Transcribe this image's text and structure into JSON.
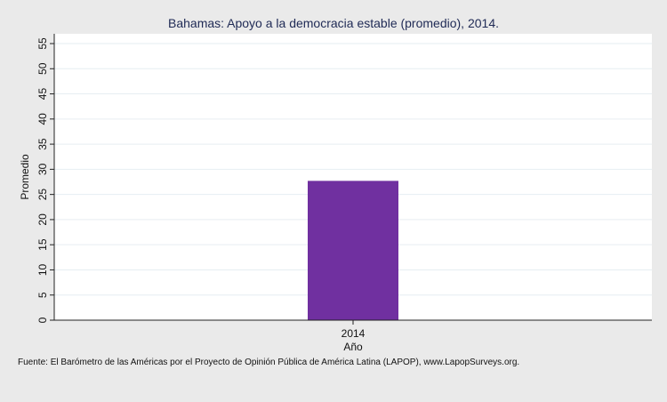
{
  "chart_data": {
    "type": "bar",
    "title": "Bahamas: Apoyo a la democracia estable (promedio), 2014.",
    "xlabel": "Año",
    "ylabel": "Promedio",
    "categories": [
      "2014"
    ],
    "values": [
      27.7
    ],
    "ylim": [
      0,
      55
    ],
    "yticks": [
      0,
      5,
      10,
      15,
      20,
      25,
      30,
      35,
      40,
      45,
      50,
      55
    ],
    "grid": true,
    "bar_color": "#7030a0"
  },
  "source": "Fuente: El Barómetro de las Américas por el Proyecto de Opinión Pública de América Latina (LAPOP), www.LapopSurveys.org."
}
